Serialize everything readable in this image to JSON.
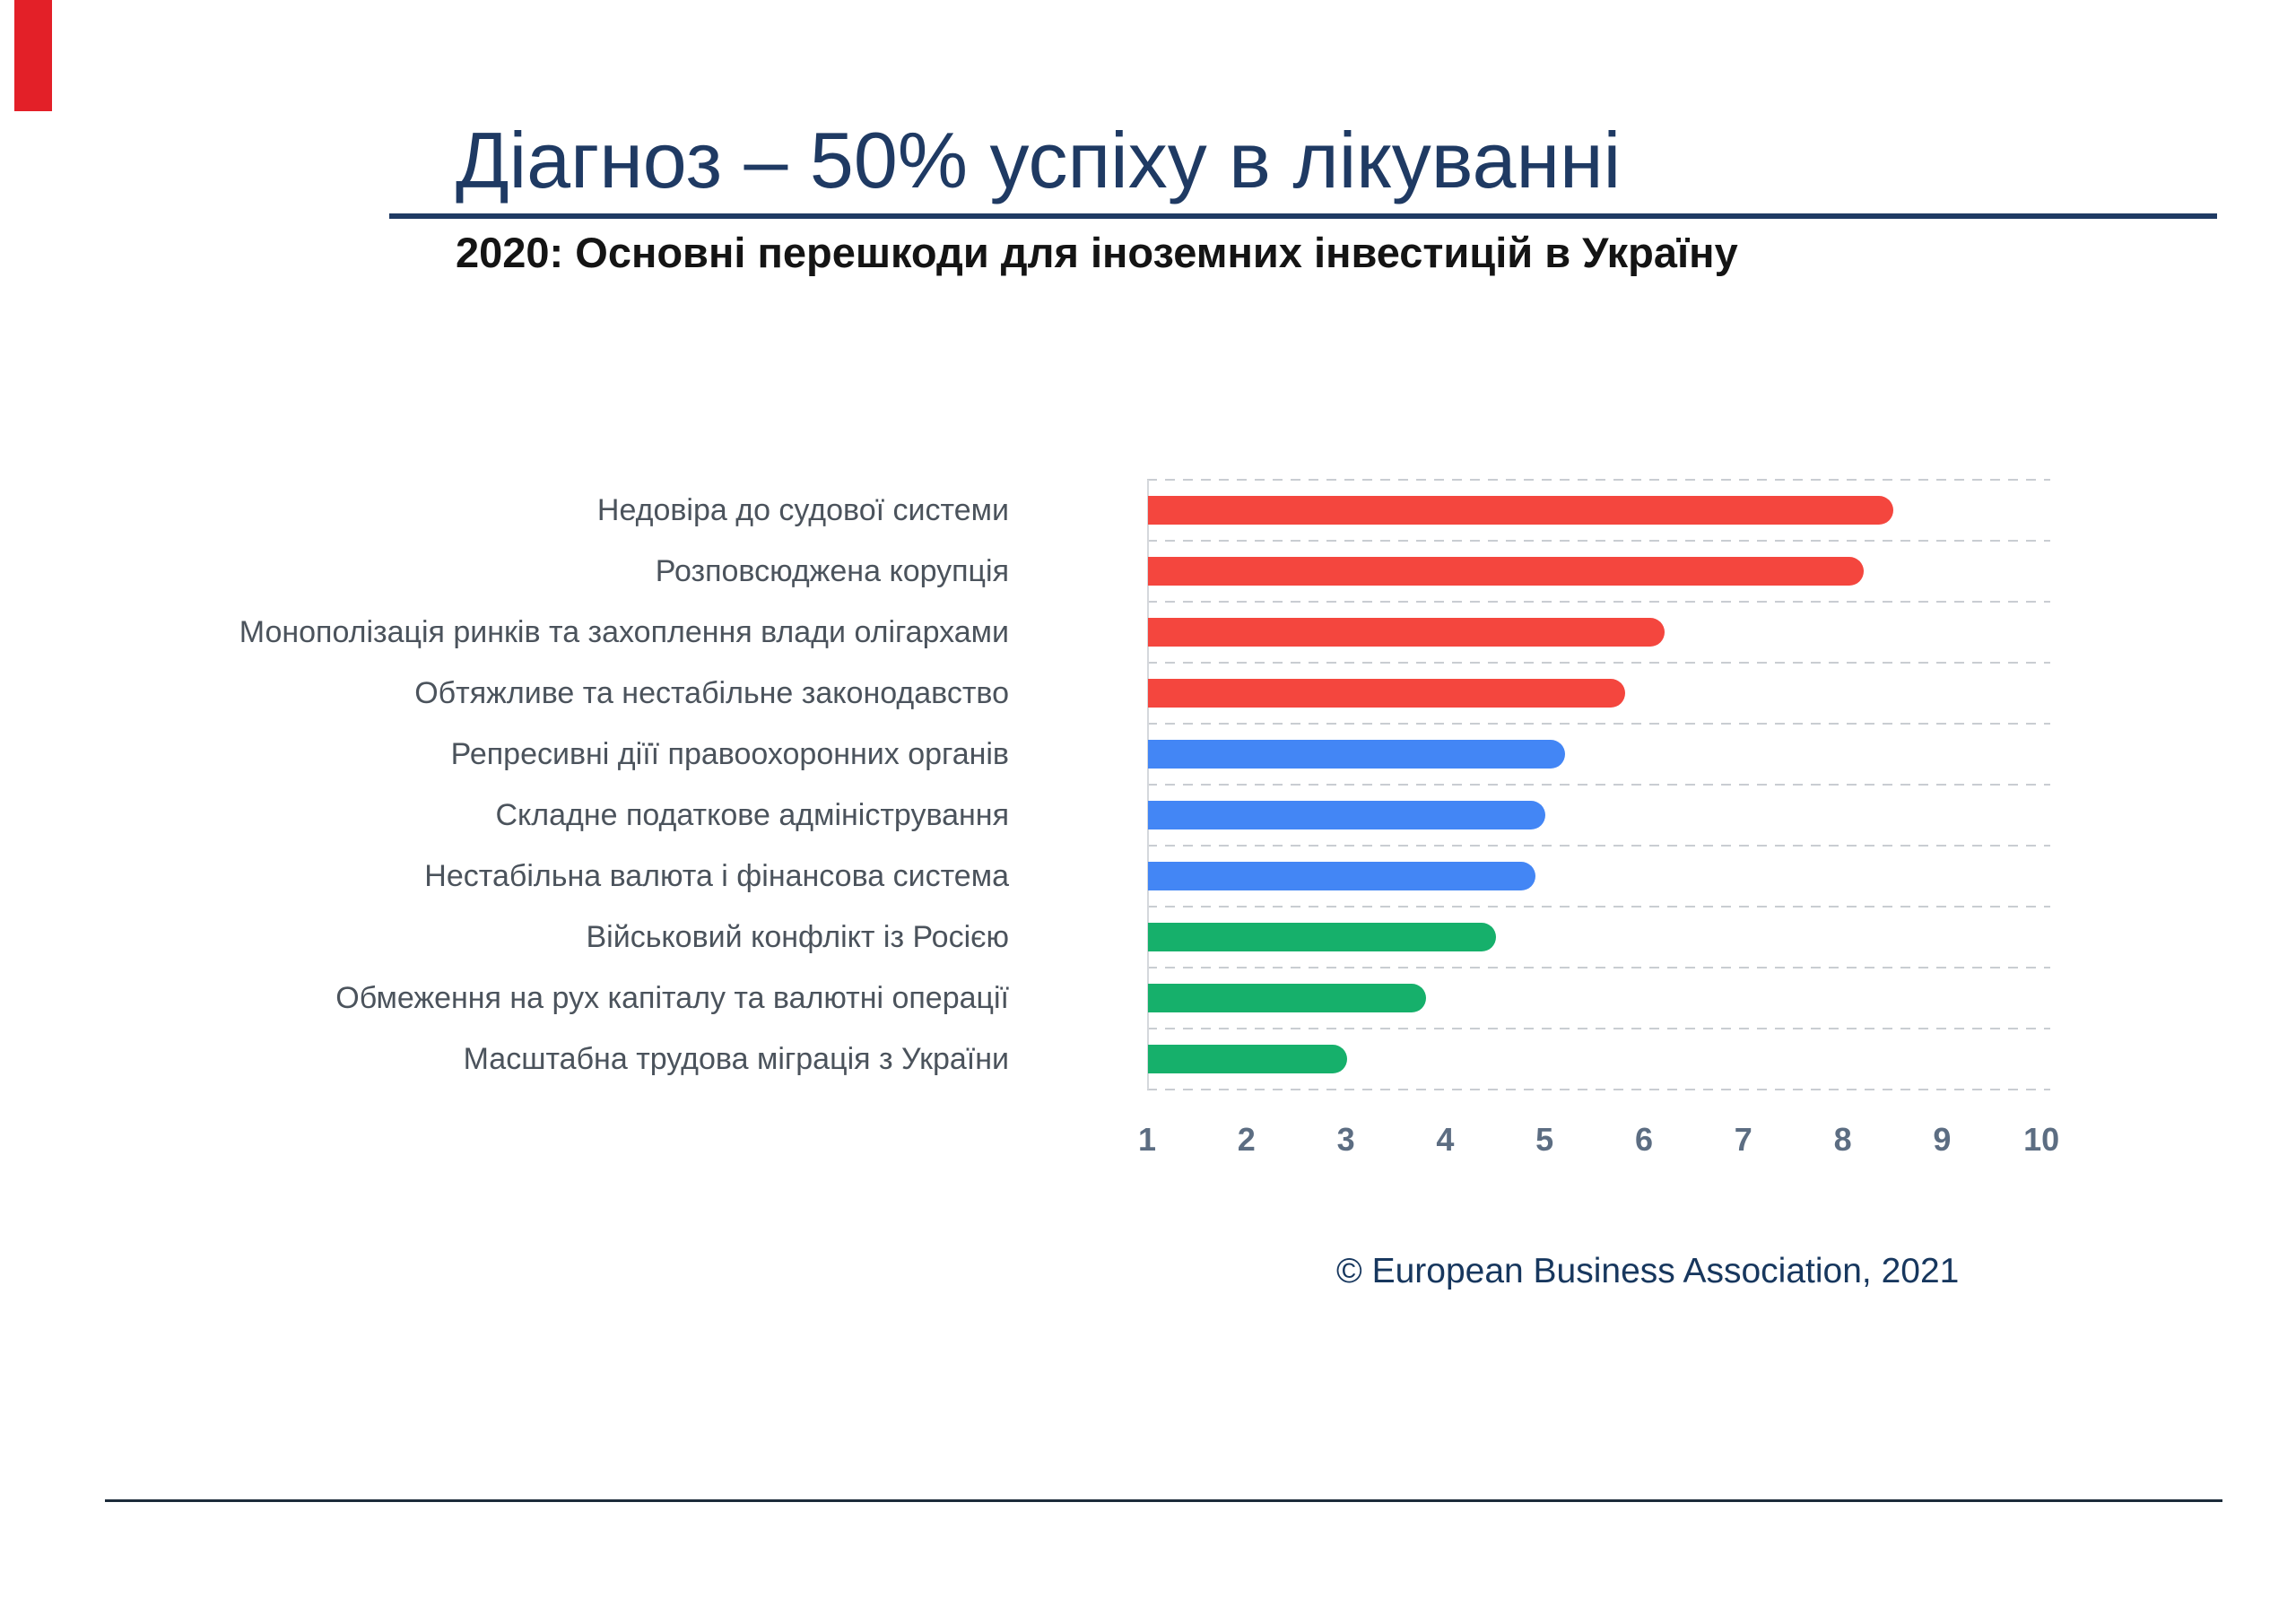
{
  "slide": {
    "title": "Діагноз – 50% успіху в лікуванні",
    "subtitle": "2020: Основні перешкоди для іноземних інвестицій в Україну",
    "attribution": "© European Business Association, 2021"
  },
  "colors": {
    "accent_red": "#e32028",
    "title_navy": "#1f3a63",
    "rule_navy": "#1f3a63",
    "subtitle_black": "#141414",
    "attribution_navy": "#17375e",
    "bottom_rule_dark": "#1c2b3a",
    "bar_red": "#f4463e",
    "bar_blue": "#4386f5",
    "bar_green": "#16b06b",
    "grid_gray": "#c9cdd2",
    "axis_gray": "#d5d8dc",
    "tick_text": "#5c6d82",
    "label_text": "#4b535c"
  },
  "chart_data": {
    "type": "bar",
    "orientation": "horizontal",
    "title": "2020: Основні перешкоди для іноземних інвестицій в Україну",
    "categories": [
      "Недовіра до судової системи",
      "Розповсюджена корупція",
      "Монополізація ринків та захоплення влади олігархами",
      "Обтяжливе та нестабільне законодавство",
      "Репресивні діїї правоохоронних органів",
      "Складне податкове адміністрування",
      "Нестабільна валюта і фінансова система",
      "Військовий конфлікт із Росією",
      "Обмеження на рух капіталу та валютні операції",
      "Масштабна трудова міграція з України"
    ],
    "values": [
      8.5,
      8.2,
      6.2,
      5.8,
      5.2,
      5.0,
      4.9,
      4.5,
      3.8,
      3.0
    ],
    "bar_color_keys": [
      "bar_red",
      "bar_red",
      "bar_red",
      "bar_red",
      "bar_blue",
      "bar_blue",
      "bar_blue",
      "bar_green",
      "bar_green",
      "bar_green"
    ],
    "xlim": [
      1,
      10
    ],
    "x_tick_labels": [
      "1",
      "2",
      "3",
      "4",
      "5",
      "6",
      "7",
      "8",
      "9",
      "10"
    ],
    "grid": "horizontal dashed rows, light gray",
    "legend": "none",
    "xlabel": "",
    "ylabel": ""
  }
}
